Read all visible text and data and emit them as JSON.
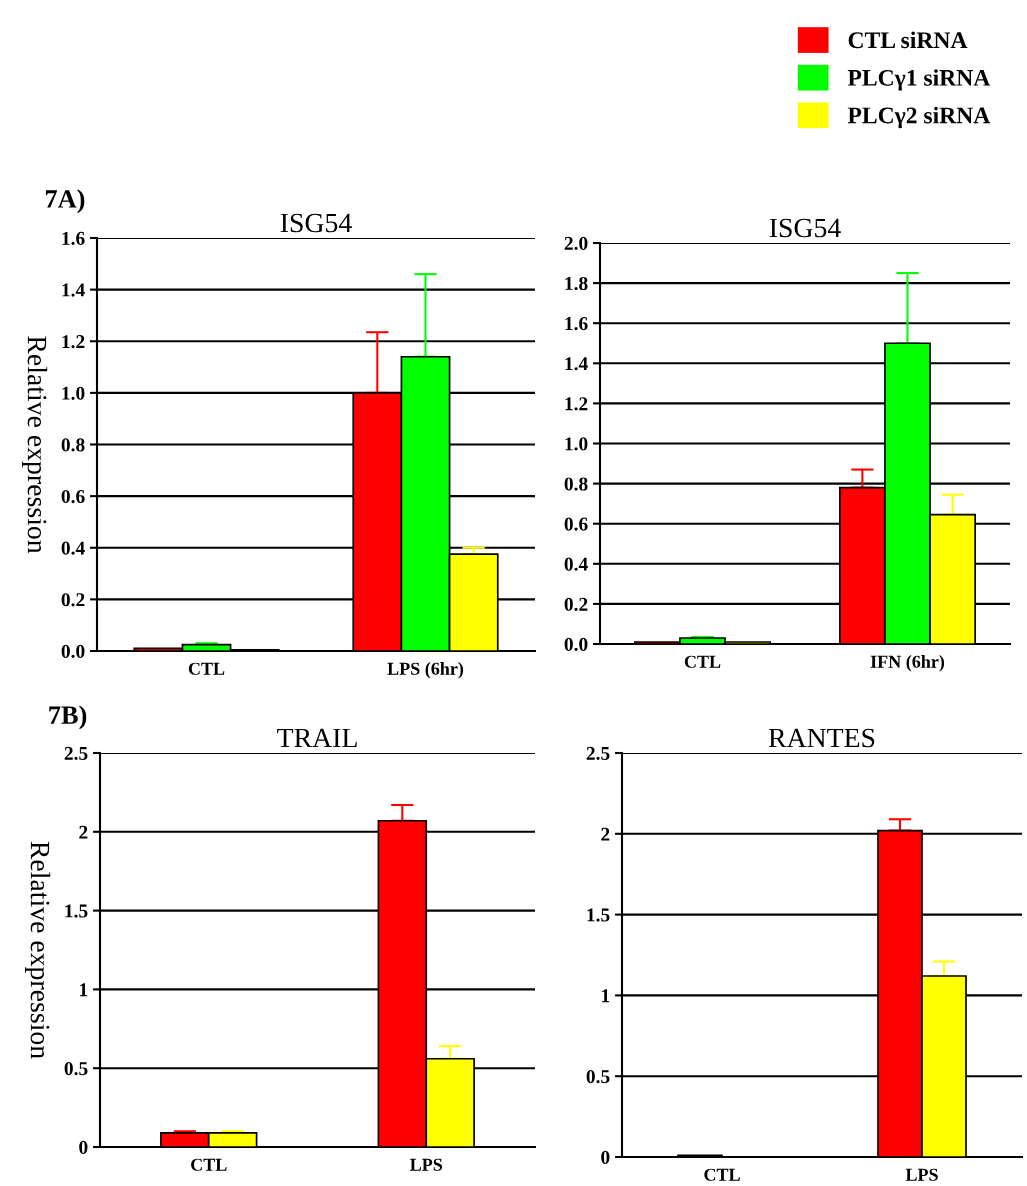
{
  "chart_data": [
    {
      "type": "bar",
      "title": "ISG54",
      "ylabel": "Relative expression",
      "annotations": [
        "7A)"
      ],
      "categories": [
        "CTL",
        "LPS (6hr)"
      ],
      "ylim": [
        0,
        1.6
      ],
      "yticks": [
        {
          "value": 0,
          "label": "0.0"
        },
        0.2,
        0.4,
        0.6,
        0.8,
        {
          "value": 1,
          "label": "1.0"
        },
        1.2,
        1.4,
        1.6
      ],
      "grid": "y",
      "legend": "top right",
      "series": [
        {
          "name": "CTL siRNA",
          "color": "#ff0000",
          "values": [
            0.01,
            1.0
          ],
          "errors": [
            null,
            [
              1.0,
              1.235
            ]
          ]
        },
        {
          "name": "PLCγ1 siRNA",
          "color": "#00ff00",
          "values": [
            0.025,
            1.14
          ],
          "errors": [
            [
              0.025,
              0.03
            ],
            [
              1.14,
              1.46
            ]
          ]
        },
        {
          "name": "PLCγ2 siRNA",
          "color": "#ffff00",
          "values": [
            0.005,
            0.375
          ],
          "errors": [
            null,
            [
              0.375,
              0.4
            ]
          ]
        }
      ]
    },
    {
      "type": "bar",
      "title": "ISG54",
      "categories": [
        "CTL",
        "IFN (6hr)"
      ],
      "ylim": [
        0,
        2.0
      ],
      "yticks": [
        {
          "value": 0,
          "label": "0.0"
        },
        0.2,
        0.4,
        0.6,
        0.8,
        {
          "value": 1,
          "label": "1.0"
        },
        1.2,
        1.4,
        1.6,
        1.8,
        {
          "value": 2,
          "label": "2.0"
        }
      ],
      "grid": "y",
      "series": [
        {
          "color": "#ff0000",
          "values": [
            0.01,
            0.78
          ],
          "errors": [
            null,
            [
              0.78,
              0.87
            ]
          ]
        },
        {
          "color": "#00ff00",
          "values": [
            0.03,
            1.5
          ],
          "errors": [
            [
              0.03,
              0.035
            ],
            [
              1.5,
              1.85
            ]
          ]
        },
        {
          "color": "#ffff00",
          "values": [
            0.01,
            0.645
          ],
          "errors": [
            null,
            [
              0.645,
              0.745
            ]
          ]
        }
      ]
    },
    {
      "type": "bar",
      "title": "TRAIL",
      "ylabel": "Relative expression",
      "annotations": [
        "7B)"
      ],
      "categories": [
        "CTL",
        "LPS"
      ],
      "ylim": [
        0,
        2.5
      ],
      "yticks": [
        0,
        0.5,
        1,
        1.5,
        2,
        2.5
      ],
      "grid": "y",
      "series": [
        {
          "color": "#ff0000",
          "values": [
            0.09,
            2.07
          ],
          "errors": [
            [
              0.09,
              0.1
            ],
            [
              2.07,
              2.17
            ]
          ]
        },
        {
          "color": "#ffff00",
          "values": [
            0.09,
            0.56
          ],
          "errors": [
            [
              0.09,
              0.1
            ],
            [
              0.56,
              0.64
            ]
          ]
        }
      ]
    },
    {
      "type": "bar",
      "title": "RANTES",
      "categories": [
        "CTL",
        "LPS"
      ],
      "ylim": [
        0,
        2.5
      ],
      "yticks": [
        0,
        0.5,
        1,
        1.5,
        2,
        2.5
      ],
      "grid": "y",
      "series": [
        {
          "color": "#ff0000",
          "values": [
            0.01,
            2.02
          ],
          "errors": [
            null,
            [
              2.02,
              2.09
            ]
          ]
        },
        {
          "color": "#ffff00",
          "values": [
            null,
            1.12
          ],
          "errors": [
            null,
            [
              1.12,
              1.21
            ]
          ]
        }
      ]
    }
  ]
}
